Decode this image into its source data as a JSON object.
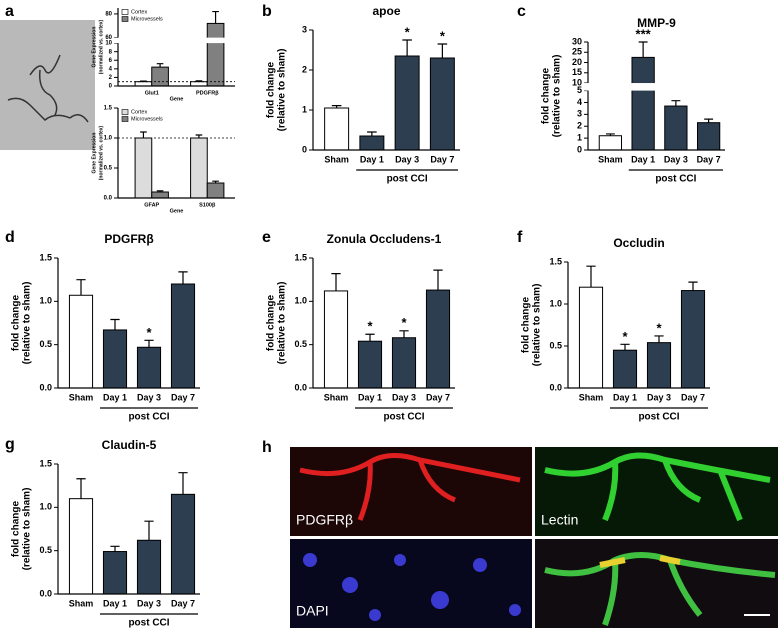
{
  "chart_data": [
    {
      "type": "bar",
      "panel": "a",
      "categories": [
        "Glut1",
        "PDGFRβ"
      ],
      "series": [
        {
          "name": "Cortex",
          "color": "#ffffff",
          "values": [
            1,
            1
          ],
          "errors": [
            0.15,
            0.2
          ]
        },
        {
          "name": "Microvessels",
          "color": "#808080",
          "values": [
            4.4,
            72
          ],
          "errors": [
            0.8,
            10
          ]
        }
      ],
      "ylim": [
        0,
        85
      ],
      "ybreak": [
        10,
        60
      ],
      "yticks": [
        0,
        2,
        4,
        6,
        8,
        10,
        60,
        80
      ],
      "reference_line": 1,
      "xlabel": "Gene",
      "ylabel": [
        "Gene Expression",
        "(normalized vs. cortex)"
      ],
      "legend": "top-left"
    },
    {
      "type": "bar",
      "categories": [
        "GFAP",
        "S100β"
      ],
      "series": [
        {
          "name": "Cortex",
          "color": "#dcdcdc",
          "values": [
            1.0,
            1.0
          ],
          "errors": [
            0.1,
            0.05
          ]
        },
        {
          "name": "Microvessels",
          "color": "#808080",
          "values": [
            0.1,
            0.25
          ],
          "errors": [
            0.02,
            0.03
          ]
        }
      ],
      "ylim": [
        0,
        1.5
      ],
      "yticks": [
        {
          "value": 0,
          "label": "0.0"
        },
        {
          "value": 0.5,
          "label": "0.5"
        },
        {
          "value": 1,
          "label": "1.0"
        },
        {
          "value": 1.5,
          "label": "1.5"
        }
      ],
      "reference_line": 1,
      "xlabel": "Gene",
      "ylabel": [
        "Gene Expression",
        "(normalized vs. cortex)"
      ],
      "legend": "top-left"
    },
    {
      "type": "bar",
      "panel": "b",
      "title": "apoe",
      "categories": [
        "Sham",
        "Day 1",
        "Day 3",
        "Day 7"
      ],
      "values": [
        1.05,
        0.35,
        2.35,
        2.3
      ],
      "errors": [
        0.06,
        0.1,
        0.4,
        0.35
      ],
      "annotations": [
        null,
        null,
        "*",
        "*"
      ],
      "colors": [
        "#ffffff",
        "#2c3e50",
        "#2c3e50",
        "#2c3e50"
      ],
      "ylim": [
        0,
        3
      ],
      "yticks": [
        0,
        1,
        2,
        3
      ],
      "xgroup": "post CCI",
      "ylabel": [
        "fold change",
        "(relative to sham)"
      ]
    },
    {
      "type": "bar",
      "panel": "c",
      "title": "MMP-9",
      "categories": [
        "Sham",
        "Day 1",
        "Day 3",
        "Day 7"
      ],
      "values": [
        1.2,
        22.5,
        3.7,
        2.3
      ],
      "errors": [
        0.15,
        7.5,
        0.45,
        0.3
      ],
      "annotations": [
        null,
        "***",
        null,
        null
      ],
      "colors": [
        "#ffffff",
        "#2c3e50",
        "#2c3e50",
        "#2c3e50"
      ],
      "ylim": [
        0,
        30
      ],
      "ybreak": [
        5,
        10
      ],
      "yticks": [
        0,
        1,
        2,
        3,
        4,
        5,
        10,
        15,
        20,
        25,
        30
      ],
      "xgroup": "post CCI",
      "ylabel": [
        "fold change",
        "(relative to sham)"
      ]
    },
    {
      "type": "bar",
      "panel": "d",
      "title": "PDGFRβ",
      "categories": [
        "Sham",
        "Day 1",
        "Day 3",
        "Day 7"
      ],
      "values": [
        1.07,
        0.67,
        0.47,
        1.2
      ],
      "errors": [
        0.18,
        0.12,
        0.08,
        0.14
      ],
      "annotations": [
        null,
        null,
        "*",
        null
      ],
      "colors": [
        "#ffffff",
        "#2c3e50",
        "#2c3e50",
        "#2c3e50"
      ],
      "ylim": [
        0,
        1.5
      ],
      "yticks": [
        {
          "value": 0,
          "label": "0.0"
        },
        {
          "value": 0.5,
          "label": "0.5"
        },
        {
          "value": 1,
          "label": "1.0"
        },
        {
          "value": 1.5,
          "label": "1.5"
        }
      ],
      "xgroup": "post CCI",
      "ylabel": [
        "fold change",
        "(relative to sham)"
      ]
    },
    {
      "type": "bar",
      "panel": "e",
      "title": "Zonula Occludens-1",
      "categories": [
        "Sham",
        "Day 1",
        "Day 3",
        "Day 7"
      ],
      "values": [
        1.12,
        0.54,
        0.58,
        1.13
      ],
      "errors": [
        0.2,
        0.08,
        0.08,
        0.23
      ],
      "annotations": [
        null,
        "*",
        "*",
        null
      ],
      "colors": [
        "#ffffff",
        "#2c3e50",
        "#2c3e50",
        "#2c3e50"
      ],
      "ylim": [
        0,
        1.5
      ],
      "yticks": [
        {
          "value": 0,
          "label": "0.0"
        },
        {
          "value": 0.5,
          "label": "0.5"
        },
        {
          "value": 1,
          "label": "1.0"
        },
        {
          "value": 1.5,
          "label": "1.5"
        }
      ],
      "xgroup": "post CCI",
      "ylabel": [
        "fold change",
        "(relative to sham)"
      ]
    },
    {
      "type": "bar",
      "panel": "f",
      "title": "Occludin",
      "categories": [
        "Sham",
        "Day 1",
        "Day 3",
        "Day 7"
      ],
      "values": [
        1.2,
        0.45,
        0.54,
        1.16
      ],
      "errors": [
        0.25,
        0.07,
        0.08,
        0.1
      ],
      "annotations": [
        null,
        "*",
        "*",
        null
      ],
      "colors": [
        "#ffffff",
        "#2c3e50",
        "#2c3e50",
        "#2c3e50"
      ],
      "ylim": [
        0,
        1.5
      ],
      "yticks": [
        {
          "value": 0,
          "label": "0.0"
        },
        {
          "value": 0.5,
          "label": "0.5"
        },
        {
          "value": 1,
          "label": "1.0"
        },
        {
          "value": 1.5,
          "label": "1.5"
        }
      ],
      "xgroup": "post CCI",
      "ylabel": [
        "fold change",
        "(relative to sham)"
      ]
    },
    {
      "type": "bar",
      "panel": "g",
      "title": "Claudin-5",
      "categories": [
        "Sham",
        "Day 1",
        "Day 3",
        "Day 7"
      ],
      "values": [
        1.1,
        0.49,
        0.62,
        1.15
      ],
      "errors": [
        0.23,
        0.06,
        0.22,
        0.25
      ],
      "annotations": [
        null,
        null,
        null,
        null
      ],
      "colors": [
        "#ffffff",
        "#2c3e50",
        "#2c3e50",
        "#2c3e50"
      ],
      "ylim": [
        0,
        1.5
      ],
      "yticks": [
        {
          "value": 0,
          "label": "0.0"
        },
        {
          "value": 0.5,
          "label": "0.5"
        },
        {
          "value": 1,
          "label": "1.0"
        },
        {
          "value": 1.5,
          "label": "1.5"
        }
      ],
      "xgroup": "post CCI",
      "ylabel": [
        "fold change",
        "(relative to sham)"
      ]
    }
  ],
  "figure": {
    "image_panel": "h",
    "channels": [
      "PDGFRβ",
      "Lectin",
      "DAPI"
    ]
  }
}
